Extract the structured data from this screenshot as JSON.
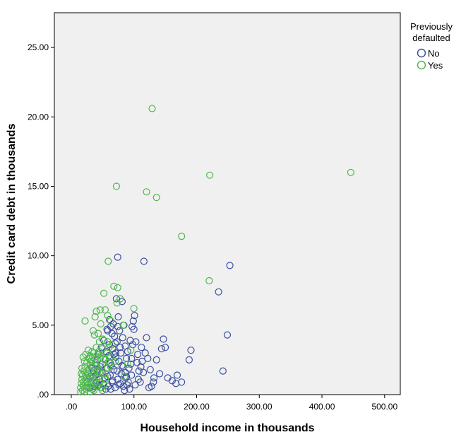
{
  "chart_data": {
    "type": "scatter",
    "xlabel": "Household income in thousands",
    "ylabel": "Credit card debt in thousands",
    "xlim": [
      -27,
      525
    ],
    "ylim": [
      0,
      27.5
    ],
    "x_ticks": [
      ".00",
      "100.00",
      "200.00",
      "300.00",
      "400.00",
      "500.00"
    ],
    "x_tick_values": [
      0,
      100,
      200,
      300,
      400,
      500
    ],
    "y_ticks": [
      ".00",
      "5.00",
      "10.00",
      "15.00",
      "20.00",
      "25.00"
    ],
    "y_tick_values": [
      0,
      5,
      10,
      15,
      20,
      25
    ],
    "grid": false,
    "plot_background": "#f0f0f0",
    "legend": {
      "title_line1": "Previously",
      "title_line2": "defaulted",
      "placement": "right"
    },
    "series": [
      {
        "name": "No",
        "color": "#3a4fa0",
        "points": [
          [
            74,
            9.9
          ],
          [
            116,
            9.6
          ],
          [
            253,
            9.3
          ],
          [
            235,
            7.4
          ],
          [
            249,
            4.3
          ],
          [
            242,
            1.7
          ],
          [
            191,
            3.2
          ],
          [
            188,
            2.5
          ],
          [
            176,
            0.9
          ],
          [
            167,
            0.8
          ],
          [
            161,
            1.0
          ],
          [
            150,
            3.4
          ],
          [
            147,
            4.0
          ],
          [
            144,
            3.3
          ],
          [
            132,
            1.2
          ],
          [
            128,
            0.6
          ],
          [
            124,
            0.5
          ],
          [
            122,
            2.6
          ],
          [
            120,
            4.1
          ],
          [
            118,
            3.0
          ],
          [
            115,
            1.6
          ],
          [
            113,
            2.4
          ],
          [
            112,
            3.4
          ],
          [
            110,
            0.9
          ],
          [
            108,
            1.7
          ],
          [
            106,
            2.9
          ],
          [
            101,
            5.7
          ],
          [
            100,
            4.7
          ],
          [
            99,
            5.3
          ],
          [
            98,
            3.6
          ],
          [
            97,
            4.9
          ],
          [
            96,
            1.4
          ],
          [
            95,
            2.2
          ],
          [
            93,
            0.4
          ],
          [
            92,
            1.9
          ],
          [
            90,
            3.1
          ],
          [
            89,
            0.7
          ],
          [
            88,
            2.6
          ],
          [
            87,
            1.2
          ],
          [
            86,
            3.5
          ],
          [
            85,
            0.3
          ],
          [
            84,
            5.0
          ],
          [
            83,
            2.0
          ],
          [
            82,
            4.1
          ],
          [
            81,
            6.7
          ],
          [
            80,
            1.5
          ],
          [
            79,
            3.0
          ],
          [
            78,
            0.8
          ],
          [
            77,
            4.6
          ],
          [
            76,
            2.4
          ],
          [
            75,
            5.6
          ],
          [
            74,
            1.1
          ],
          [
            73,
            3.8
          ],
          [
            72,
            6.9
          ],
          [
            71,
            2.7
          ],
          [
            70,
            0.5
          ],
          [
            69,
            4.2
          ],
          [
            68,
            1.8
          ],
          [
            67,
            5.1
          ],
          [
            66,
            3.3
          ],
          [
            65,
            0.9
          ],
          [
            64,
            2.1
          ],
          [
            63,
            4.9
          ],
          [
            62,
            1.4
          ],
          [
            61,
            3.6
          ],
          [
            60,
            2.8
          ],
          [
            59,
            0.6
          ],
          [
            58,
            4.6
          ],
          [
            57,
            1.9
          ],
          [
            56,
            3.1
          ],
          [
            55,
            0.4
          ],
          [
            54,
            2.5
          ],
          [
            53,
            1.2
          ],
          [
            52,
            3.9
          ],
          [
            51,
            0.8
          ],
          [
            50,
            2.2
          ],
          [
            49,
            1.6
          ],
          [
            48,
            3.4
          ],
          [
            47,
            0.5
          ],
          [
            46,
            2.0
          ],
          [
            45,
            1.1
          ],
          [
            44,
            2.9
          ],
          [
            43,
            0.7
          ],
          [
            42,
            1.8
          ],
          [
            41,
            2.5
          ],
          [
            40,
            0.9
          ],
          [
            39,
            1.4
          ],
          [
            38,
            2.2
          ],
          [
            37,
            0.6
          ],
          [
            36,
            1.7
          ],
          [
            35,
            1.2
          ],
          [
            34,
            0.4
          ],
          [
            33,
            1.9
          ],
          [
            32,
            0.8
          ],
          [
            31,
            1.3
          ],
          [
            30,
            0.5
          ],
          [
            62,
            2.3
          ],
          [
            66,
            1.0
          ],
          [
            71,
            3.0
          ],
          [
            76,
            0.7
          ],
          [
            81,
            2.1
          ],
          [
            86,
            1.6
          ],
          [
            91,
            0.9
          ],
          [
            96,
            2.6
          ],
          [
            103,
            3.8
          ],
          [
            107,
            1.1
          ],
          [
            111,
            2.0
          ],
          [
            126,
            1.8
          ],
          [
            136,
            2.5
          ],
          [
            141,
            1.5
          ],
          [
            58,
            1.3
          ],
          [
            63,
            0.4
          ],
          [
            68,
            2.9
          ],
          [
            73,
            1.7
          ],
          [
            78,
            3.4
          ],
          [
            83,
            0.6
          ],
          [
            88,
            1.3
          ],
          [
            94,
            3.9
          ],
          [
            57,
            4.7
          ],
          [
            61,
            5.4
          ],
          [
            65,
            4.4
          ],
          [
            70,
            3.7
          ],
          [
            74,
            4.9
          ],
          [
            102,
            0.7
          ],
          [
            105,
            2.3
          ],
          [
            131,
            0.9
          ],
          [
            154,
            1.2
          ],
          [
            169,
            1.4
          ]
        ]
      },
      {
        "name": "Yes",
        "color": "#4cb84c",
        "points": [
          [
            129,
            20.6
          ],
          [
            446,
            16.0
          ],
          [
            221,
            15.8
          ],
          [
            72,
            15.0
          ],
          [
            120,
            14.6
          ],
          [
            136,
            14.2
          ],
          [
            176,
            11.4
          ],
          [
            59,
            9.6
          ],
          [
            220,
            8.2
          ],
          [
            68,
            7.8
          ],
          [
            74,
            7.7
          ],
          [
            52,
            7.3
          ],
          [
            78,
            6.9
          ],
          [
            73,
            6.6
          ],
          [
            100,
            6.2
          ],
          [
            40,
            6.0
          ],
          [
            46,
            6.1
          ],
          [
            54,
            6.1
          ],
          [
            58,
            5.7
          ],
          [
            63,
            5.3
          ],
          [
            22,
            5.3
          ],
          [
            38,
            5.6
          ],
          [
            47,
            5.1
          ],
          [
            35,
            4.6
          ],
          [
            37,
            4.3
          ],
          [
            43,
            4.4
          ],
          [
            50,
            4.0
          ],
          [
            58,
            3.8
          ],
          [
            65,
            3.6
          ],
          [
            83,
            5.0
          ],
          [
            95,
            3.2
          ],
          [
            45,
            3.8
          ],
          [
            40,
            3.4
          ],
          [
            33,
            3.1
          ],
          [
            30,
            2.8
          ],
          [
            28,
            2.6
          ],
          [
            25,
            2.3
          ],
          [
            22,
            2.0
          ],
          [
            20,
            1.7
          ],
          [
            18,
            1.4
          ],
          [
            17,
            1.1
          ],
          [
            16,
            0.8
          ],
          [
            15,
            0.5
          ],
          [
            15,
            0.2
          ],
          [
            18,
            0.3
          ],
          [
            20,
            0.6
          ],
          [
            22,
            0.9
          ],
          [
            24,
            1.2
          ],
          [
            26,
            1.5
          ],
          [
            28,
            1.8
          ],
          [
            30,
            2.1
          ],
          [
            32,
            2.4
          ],
          [
            34,
            2.7
          ],
          [
            36,
            3.0
          ],
          [
            38,
            2.5
          ],
          [
            40,
            2.1
          ],
          [
            42,
            1.7
          ],
          [
            44,
            1.3
          ],
          [
            46,
            0.9
          ],
          [
            48,
            0.5
          ],
          [
            50,
            0.3
          ],
          [
            52,
            0.7
          ],
          [
            54,
            1.1
          ],
          [
            56,
            1.5
          ],
          [
            58,
            1.9
          ],
          [
            60,
            2.3
          ],
          [
            62,
            2.7
          ],
          [
            44,
            3.1
          ],
          [
            46,
            2.6
          ],
          [
            48,
            2.0
          ],
          [
            50,
            1.5
          ],
          [
            35,
            1.0
          ],
          [
            33,
            0.4
          ],
          [
            31,
            0.8
          ],
          [
            29,
            1.3
          ],
          [
            27,
            0.5
          ],
          [
            25,
            0.9
          ],
          [
            23,
            1.4
          ],
          [
            21,
            2.4
          ],
          [
            19,
            2.7
          ],
          [
            17,
            1.9
          ],
          [
            16,
            1.5
          ],
          [
            19,
            0.9
          ],
          [
            21,
            0.2
          ],
          [
            24,
            0.4
          ],
          [
            26,
            0.7
          ],
          [
            28,
            1.1
          ],
          [
            30,
            0.2
          ],
          [
            32,
            1.6
          ],
          [
            34,
            2.0
          ],
          [
            36,
            0.3
          ],
          [
            38,
            0.8
          ],
          [
            40,
            1.2
          ],
          [
            42,
            2.9
          ],
          [
            55,
            2.5
          ],
          [
            60,
            3.4
          ],
          [
            70,
            2.4
          ],
          [
            90,
            2.2
          ],
          [
            85,
            1.3
          ],
          [
            57,
            3.0
          ],
          [
            63,
            2.0
          ],
          [
            27,
            3.2
          ],
          [
            23,
            2.9
          ],
          [
            41,
            0.6
          ],
          [
            43,
            1.9
          ],
          [
            37,
            1.5
          ],
          [
            39,
            2.3
          ],
          [
            45,
            1.6
          ],
          [
            47,
            2.8
          ],
          [
            49,
            3.3
          ],
          [
            51,
            2.6
          ]
        ]
      }
    ]
  }
}
